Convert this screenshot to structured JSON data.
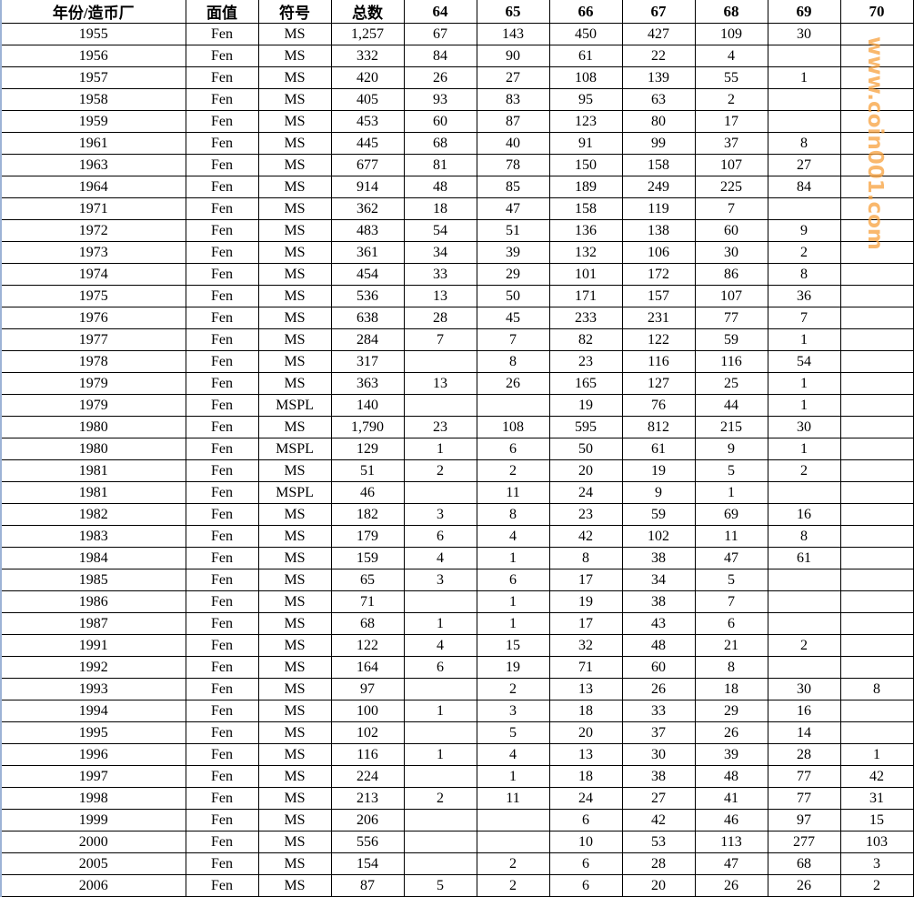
{
  "table": {
    "headers": [
      "年份/造币厂",
      "面值",
      "符号",
      "总数",
      "64",
      "65",
      "66",
      "67",
      "68",
      "69",
      "70"
    ],
    "rows": [
      [
        "1955",
        "Fen",
        "MS",
        "1,257",
        "67",
        "143",
        "450",
        "427",
        "109",
        "30",
        ""
      ],
      [
        "1956",
        "Fen",
        "MS",
        "332",
        "84",
        "90",
        "61",
        "22",
        "4",
        "",
        ""
      ],
      [
        "1957",
        "Fen",
        "MS",
        "420",
        "26",
        "27",
        "108",
        "139",
        "55",
        "1",
        ""
      ],
      [
        "1958",
        "Fen",
        "MS",
        "405",
        "93",
        "83",
        "95",
        "63",
        "2",
        "",
        ""
      ],
      [
        "1959",
        "Fen",
        "MS",
        "453",
        "60",
        "87",
        "123",
        "80",
        "17",
        "",
        ""
      ],
      [
        "1961",
        "Fen",
        "MS",
        "445",
        "68",
        "40",
        "91",
        "99",
        "37",
        "8",
        ""
      ],
      [
        "1963",
        "Fen",
        "MS",
        "677",
        "81",
        "78",
        "150",
        "158",
        "107",
        "27",
        ""
      ],
      [
        "1964",
        "Fen",
        "MS",
        "914",
        "48",
        "85",
        "189",
        "249",
        "225",
        "84",
        ""
      ],
      [
        "1971",
        "Fen",
        "MS",
        "362",
        "18",
        "47",
        "158",
        "119",
        "7",
        "",
        ""
      ],
      [
        "1972",
        "Fen",
        "MS",
        "483",
        "54",
        "51",
        "136",
        "138",
        "60",
        "9",
        ""
      ],
      [
        "1973",
        "Fen",
        "MS",
        "361",
        "34",
        "39",
        "132",
        "106",
        "30",
        "2",
        ""
      ],
      [
        "1974",
        "Fen",
        "MS",
        "454",
        "33",
        "29",
        "101",
        "172",
        "86",
        "8",
        ""
      ],
      [
        "1975",
        "Fen",
        "MS",
        "536",
        "13",
        "50",
        "171",
        "157",
        "107",
        "36",
        ""
      ],
      [
        "1976",
        "Fen",
        "MS",
        "638",
        "28",
        "45",
        "233",
        "231",
        "77",
        "7",
        ""
      ],
      [
        "1977",
        "Fen",
        "MS",
        "284",
        "7",
        "7",
        "82",
        "122",
        "59",
        "1",
        ""
      ],
      [
        "1978",
        "Fen",
        "MS",
        "317",
        "",
        "8",
        "23",
        "116",
        "116",
        "54",
        ""
      ],
      [
        "1979",
        "Fen",
        "MS",
        "363",
        "13",
        "26",
        "165",
        "127",
        "25",
        "1",
        ""
      ],
      [
        "1979",
        "Fen",
        "MSPL",
        "140",
        "",
        "",
        "19",
        "76",
        "44",
        "1",
        ""
      ],
      [
        "1980",
        "Fen",
        "MS",
        "1,790",
        "23",
        "108",
        "595",
        "812",
        "215",
        "30",
        ""
      ],
      [
        "1980",
        "Fen",
        "MSPL",
        "129",
        "1",
        "6",
        "50",
        "61",
        "9",
        "1",
        ""
      ],
      [
        "1981",
        "Fen",
        "MS",
        "51",
        "2",
        "2",
        "20",
        "19",
        "5",
        "2",
        ""
      ],
      [
        "1981",
        "Fen",
        "MSPL",
        "46",
        "",
        "11",
        "24",
        "9",
        "1",
        "",
        ""
      ],
      [
        "1982",
        "Fen",
        "MS",
        "182",
        "3",
        "8",
        "23",
        "59",
        "69",
        "16",
        ""
      ],
      [
        "1983",
        "Fen",
        "MS",
        "179",
        "6",
        "4",
        "42",
        "102",
        "11",
        "8",
        ""
      ],
      [
        "1984",
        "Fen",
        "MS",
        "159",
        "4",
        "1",
        "8",
        "38",
        "47",
        "61",
        ""
      ],
      [
        "1985",
        "Fen",
        "MS",
        "65",
        "3",
        "6",
        "17",
        "34",
        "5",
        "",
        ""
      ],
      [
        "1986",
        "Fen",
        "MS",
        "71",
        "",
        "1",
        "19",
        "38",
        "7",
        "",
        ""
      ],
      [
        "1987",
        "Fen",
        "MS",
        "68",
        "1",
        "1",
        "17",
        "43",
        "6",
        "",
        ""
      ],
      [
        "1991",
        "Fen",
        "MS",
        "122",
        "4",
        "15",
        "32",
        "48",
        "21",
        "2",
        ""
      ],
      [
        "1992",
        "Fen",
        "MS",
        "164",
        "6",
        "19",
        "71",
        "60",
        "8",
        "",
        ""
      ],
      [
        "1993",
        "Fen",
        "MS",
        "97",
        "",
        "2",
        "13",
        "26",
        "18",
        "30",
        "8"
      ],
      [
        "1994",
        "Fen",
        "MS",
        "100",
        "1",
        "3",
        "18",
        "33",
        "29",
        "16",
        ""
      ],
      [
        "1995",
        "Fen",
        "MS",
        "102",
        "",
        "5",
        "20",
        "37",
        "26",
        "14",
        ""
      ],
      [
        "1996",
        "Fen",
        "MS",
        "116",
        "1",
        "4",
        "13",
        "30",
        "39",
        "28",
        "1"
      ],
      [
        "1997",
        "Fen",
        "MS",
        "224",
        "",
        "1",
        "18",
        "38",
        "48",
        "77",
        "42"
      ],
      [
        "1998",
        "Fen",
        "MS",
        "213",
        "2",
        "11",
        "24",
        "27",
        "41",
        "77",
        "31"
      ],
      [
        "1999",
        "Fen",
        "MS",
        "206",
        "",
        "",
        "6",
        "42",
        "46",
        "97",
        "15"
      ],
      [
        "2000",
        "Fen",
        "MS",
        "556",
        "",
        "",
        "10",
        "53",
        "113",
        "277",
        "103"
      ],
      [
        "2005",
        "Fen",
        "MS",
        "154",
        "",
        "2",
        "6",
        "28",
        "47",
        "68",
        "3"
      ],
      [
        "2006",
        "Fen",
        "MS",
        "87",
        "5",
        "2",
        "6",
        "20",
        "26",
        "26",
        "2"
      ]
    ]
  },
  "watermark": "www.coin001.com",
  "colors": {
    "watermark": "#f7a03c",
    "left_border": "#9db3d6"
  }
}
